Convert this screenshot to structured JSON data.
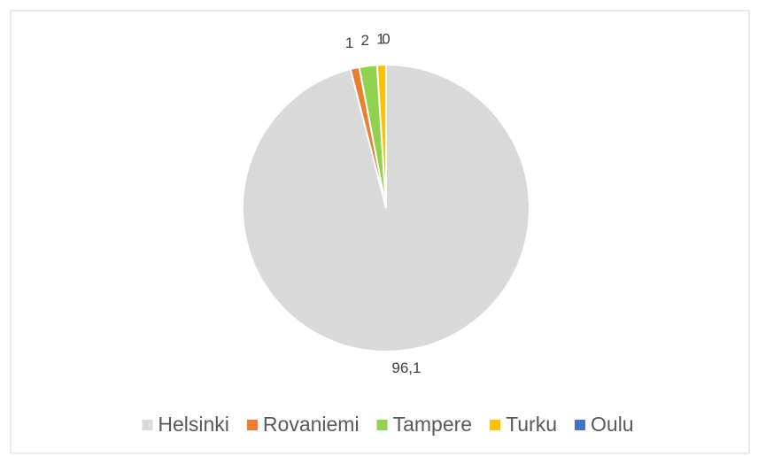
{
  "chart_data": {
    "type": "pie",
    "categories": [
      "Helsinki",
      "Rovaniemi",
      "Tampere",
      "Turku",
      "Oulu"
    ],
    "values": [
      96.1,
      1,
      2,
      1,
      0
    ],
    "value_labels": [
      "96,1",
      "1",
      "2",
      "1",
      "0"
    ],
    "colors": [
      "#d9d9d9",
      "#ed7d31",
      "#92d050",
      "#ffc000",
      "#4472c4"
    ],
    "legend": "bottom"
  }
}
